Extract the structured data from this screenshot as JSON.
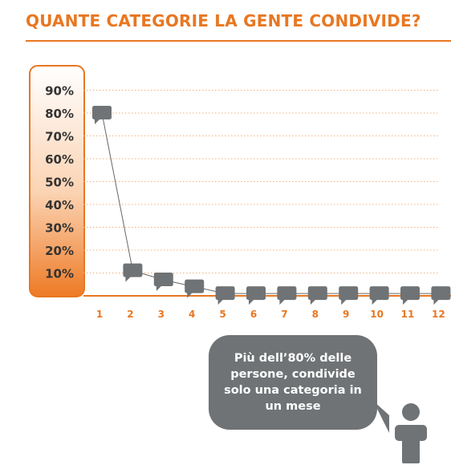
{
  "title": "QUANTE CATEGORIE LA GENTE CONDIVIDE?",
  "callout": "Più dell’80% delle persone, condivide solo una categoria in un mese",
  "colors": {
    "accent": "#e87722",
    "marker": "#6f7375",
    "axis_label": "#333333"
  },
  "chart_data": {
    "type": "line",
    "title": "QUANTE CATEGORIE LA GENTE CONDIVIDE?",
    "xlabel": "",
    "ylabel": "",
    "x": [
      1,
      2,
      3,
      4,
      5,
      6,
      7,
      8,
      9,
      10,
      11,
      12
    ],
    "series": [
      {
        "values": [
          80,
          11,
          7,
          4,
          1,
          1,
          1,
          1,
          1,
          1,
          1,
          1
        ]
      }
    ],
    "ylim": [
      0,
      90
    ],
    "y_ticks": [
      "10%",
      "20%",
      "30%",
      "40%",
      "50%",
      "60%",
      "70%",
      "80%",
      "90%"
    ],
    "x_ticks": [
      "1",
      "2",
      "3",
      "4",
      "5",
      "6",
      "7",
      "8",
      "9",
      "10",
      "11",
      "12"
    ],
    "grid": true
  }
}
